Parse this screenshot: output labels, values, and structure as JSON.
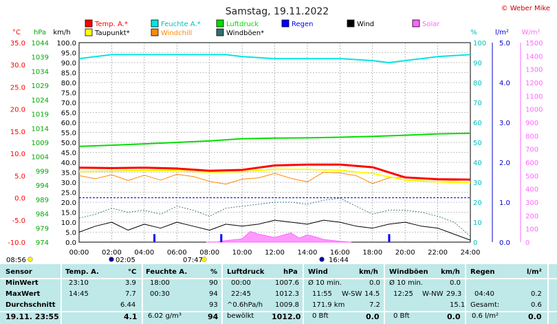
{
  "title": "Samstag, 19.11.2022",
  "credit": "© Weber Mike",
  "chart_data": {
    "type": "line",
    "x_ticks": [
      "00:00",
      "02:00",
      "04:00",
      "06:00",
      "08:00",
      "10:00",
      "12:00",
      "14:00",
      "16:00",
      "18:00",
      "20:00",
      "22:00",
      "24:00"
    ],
    "axes": {
      "temp": {
        "unit": "°C",
        "min": -10,
        "max": 35,
        "ticks": [
          "35.0",
          "30.0",
          "25.0",
          "20.0",
          "15.0",
          "10.0",
          "5.0",
          "0.0",
          "-5.0",
          "-10.0"
        ]
      },
      "pressure": {
        "unit": "hPa",
        "min": 974,
        "max": 1044,
        "ticks": [
          "1044",
          "1039",
          "1034",
          "1029",
          "1024",
          "1019",
          "1014",
          "1009",
          "1004",
          "999",
          "994",
          "989",
          "984",
          "979",
          "974"
        ]
      },
      "wind": {
        "unit": "km/h",
        "min": 0,
        "max": 100,
        "ticks": [
          "100.0",
          "95.0",
          "90.0",
          "85.0",
          "80.0",
          "75.0",
          "70.0",
          "65.0",
          "60.0",
          "55.0",
          "50.0",
          "45.0",
          "40.0",
          "35.0",
          "30.0",
          "25.0",
          "20.0",
          "15.0",
          "10.0",
          "5.0",
          "0.0"
        ]
      },
      "humidity": {
        "unit": "%",
        "min": 0,
        "max": 100,
        "ticks": [
          "100",
          "90",
          "80",
          "70",
          "60",
          "50",
          "40",
          "30",
          "20",
          "10",
          "0"
        ]
      },
      "rain": {
        "unit": "l/m²",
        "min": 0,
        "max": 5,
        "ticks": [
          "5.0",
          "4.0",
          "3.0",
          "2.0",
          "1.0",
          "0.0"
        ]
      },
      "solar": {
        "unit": "W/m²",
        "min": 0,
        "max": 1500,
        "ticks": [
          "1500",
          "1400",
          "1300",
          "1200",
          "1100",
          "1000",
          "900",
          "800",
          "700",
          "600",
          "500",
          "400",
          "300",
          "200",
          "100",
          "0"
        ]
      }
    },
    "legend": [
      {
        "label": "Temp. A.*",
        "color": "#ff0000"
      },
      {
        "label": "Feuchte A.*",
        "color": "#00e5e5"
      },
      {
        "label": "Luftdruck",
        "color": "#00dd00"
      },
      {
        "label": "Regen",
        "color": "#0000ff"
      },
      {
        "label": "Wind",
        "color": "#000000"
      },
      {
        "label": "Solar",
        "color": "#ff66ff"
      },
      {
        "label": "Taupunkt*",
        "color": "#ffff00"
      },
      {
        "label": "Windchill",
        "color": "#ff8800"
      },
      {
        "label": "Windböen*",
        "color": "#2f6f6f"
      }
    ],
    "series": [
      {
        "name": "Temp. A.*",
        "axis": "temp",
        "x": [
          0,
          2,
          4,
          6,
          8,
          10,
          12,
          14,
          16,
          18,
          20,
          22,
          24
        ],
        "values": [
          6.8,
          6.7,
          6.8,
          6.6,
          6.1,
          6.3,
          7.3,
          7.5,
          7.5,
          6.9,
          4.6,
          4.2,
          4.1
        ]
      },
      {
        "name": "Taupunkt*",
        "axis": "temp",
        "x": [
          0,
          2,
          4,
          6,
          8,
          10,
          12,
          14,
          16,
          18,
          20,
          22,
          24
        ],
        "values": [
          5.9,
          6.0,
          6.2,
          6.1,
          5.8,
          5.9,
          6.4,
          6.4,
          6.2,
          5.5,
          4.0,
          3.6,
          3.4
        ]
      },
      {
        "name": "Windchill",
        "axis": "temp",
        "x": [
          0,
          1,
          2,
          3,
          4,
          5,
          6,
          7,
          8,
          9,
          10,
          11,
          12,
          13,
          14,
          15,
          16,
          17,
          18,
          19,
          20,
          21,
          22,
          23,
          24
        ],
        "values": [
          5.0,
          4.3,
          5.2,
          3.9,
          5.1,
          4.0,
          5.3,
          4.8,
          3.7,
          3.1,
          4.2,
          4.5,
          5.5,
          4.4,
          3.6,
          5.8,
          5.6,
          5.0,
          3.2,
          4.5,
          4.6,
          4.3,
          4.0,
          3.9,
          4.0
        ]
      },
      {
        "name": "Feuchte A.*",
        "axis": "humidity",
        "x": [
          0,
          2,
          4,
          6,
          8,
          9,
          10,
          12,
          14,
          16,
          18,
          19,
          20,
          22,
          24
        ],
        "values": [
          92,
          94,
          94,
          94,
          94,
          94,
          93,
          92,
          92,
          92,
          91,
          90,
          91,
          93,
          94
        ]
      },
      {
        "name": "Luftdruck",
        "axis": "pressure",
        "x": [
          0,
          2,
          4,
          6,
          8,
          10,
          12,
          14,
          16,
          18,
          20,
          22,
          24
        ],
        "values": [
          1007.6,
          1008.0,
          1008.5,
          1009.0,
          1009.5,
          1010.3,
          1010.5,
          1010.6,
          1010.8,
          1011.1,
          1011.5,
          1012.0,
          1012.2
        ]
      },
      {
        "name": "Wind",
        "axis": "wind",
        "x": [
          0,
          1,
          2,
          3,
          4,
          5,
          6,
          7,
          8,
          9,
          10,
          11,
          12,
          13,
          14,
          15,
          16,
          17,
          18,
          19,
          20,
          21,
          22,
          23,
          24
        ],
        "values": [
          5,
          8,
          10,
          6,
          9,
          7,
          10,
          8,
          6,
          9,
          8,
          9,
          11,
          10,
          9,
          11,
          10,
          8,
          7,
          9,
          10,
          8,
          7,
          4,
          1
        ]
      },
      {
        "name": "Windböen*",
        "axis": "wind",
        "x": [
          0,
          1,
          2,
          3,
          4,
          5,
          6,
          7,
          8,
          9,
          10,
          11,
          12,
          13,
          14,
          15,
          16,
          17,
          18,
          19,
          20,
          21,
          22,
          23,
          24
        ],
        "values": [
          12,
          14,
          17,
          15,
          16,
          14,
          18,
          16,
          13,
          17,
          18,
          19,
          20,
          20,
          19,
          21,
          22,
          18,
          14,
          16,
          16,
          15,
          13,
          10,
          3
        ]
      },
      {
        "name": "Solar",
        "axis": "solar",
        "x": [
          7.8,
          8.5,
          9,
          10,
          10.5,
          11,
          12,
          13,
          13.5,
          14,
          14.5,
          15,
          16,
          16.7
        ],
        "values": [
          0,
          2,
          12,
          25,
          80,
          60,
          35,
          70,
          30,
          55,
          40,
          20,
          6,
          0
        ]
      }
    ],
    "rain_bars": [
      {
        "x": 4.6,
        "value": 0.2
      },
      {
        "x": 8.7,
        "value": 0.2
      },
      {
        "x": 19.0,
        "value": 0.2
      }
    ],
    "sun_events": [
      {
        "time": "08:56"
      },
      {
        "time": "02:05"
      },
      {
        "time": "07:47"
      },
      {
        "time": "16:44"
      }
    ]
  },
  "table": {
    "sensor": {
      "header": "Sensor",
      "rows": [
        "MinWert",
        "MaxWert",
        "Durchschnitt",
        "19.11. 23:55"
      ]
    },
    "temp": {
      "header": "Temp. A.",
      "unit": "°C",
      "min_time": "23:10",
      "min_val": "3.9",
      "max_time": "14:45",
      "max_val": "7.7",
      "avg_val": "6.44",
      "cur_val": "4.1"
    },
    "hum": {
      "header": "Feuchte A.",
      "unit": "%",
      "min_time": "18:00",
      "min_val": "90",
      "max_time": "00:30",
      "max_val": "94",
      "avg_val": "93",
      "cur_label": "6.02 g/m³",
      "cur_val": "94"
    },
    "press": {
      "header": "Luftdruck",
      "unit": "hPa",
      "min_time": "00:00",
      "min_val": "1007.6",
      "max_time": "22:45",
      "max_val": "1012.3",
      "avg_label": "^0.6hPa/h",
      "avg_val": "1009.8",
      "cur_label": "bewölkt",
      "cur_val": "1012.0"
    },
    "wind": {
      "header": "Wind",
      "unit": "km/h",
      "min_time": "Ø 10 min.",
      "min_val": "0.0",
      "max_time": "11:55",
      "max_dir": "W-SW",
      "max_val": "14.5",
      "avg_label": "171.9 km",
      "avg_val": "7.2",
      "cur_label": "0 Bft",
      "cur_val": "0.0"
    },
    "gust": {
      "header": "Windböen",
      "unit": "km/h",
      "min_time": "Ø 10 min.",
      "min_val": "0.0",
      "max_time": "12:25",
      "max_dir": "W-NW",
      "max_val": "29.3",
      "avg_val": "15.1",
      "cur_label": "0 Bft",
      "cur_val": "0.0"
    },
    "rain": {
      "header": "Regen",
      "unit": "l/m²",
      "max_time": "04:40",
      "max_val": "0.2",
      "avg_label": "Gesamt:",
      "avg_val": "0.6",
      "cur_label": "0.6 l/m²",
      "cur_val": "0.0"
    }
  },
  "sun": {
    "sunrise": "08:56",
    "moonset": "02:05",
    "moonrise2": "07:47",
    "sunset": "16:44"
  }
}
